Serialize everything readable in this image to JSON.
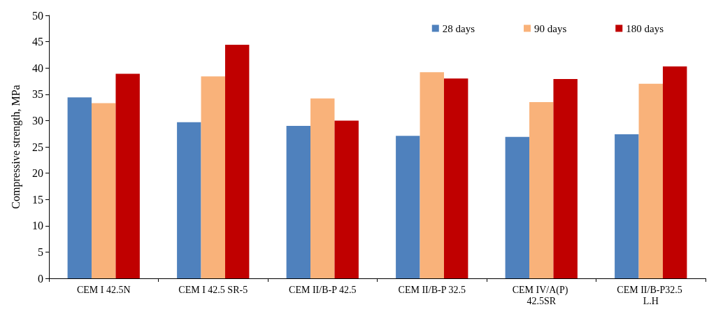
{
  "chart_data": {
    "type": "bar",
    "ylabel": "Compressive strength, MPa",
    "categories": [
      "CEM I 42.5N",
      "CEM I 42.5 SR-5",
      "CEM II/B-P 42.5",
      "CEM II/B-P 32.5",
      "CEM IV/A(P) 42.5SR",
      "CEM II/B-P32.5 L.H"
    ],
    "series": [
      {
        "name": "28 days",
        "color": "#4f81bd",
        "values": [
          34.4,
          29.7,
          29.0,
          27.1,
          26.9,
          27.4
        ]
      },
      {
        "name": "90 days",
        "color": "#f9b27a",
        "values": [
          33.3,
          38.4,
          34.2,
          39.2,
          33.5,
          37.0
        ]
      },
      {
        "name": "180 days",
        "color": "#c00000",
        "values": [
          38.9,
          44.4,
          30.0,
          38.0,
          37.9,
          40.3
        ]
      }
    ],
    "ylim": [
      0,
      50
    ],
    "yticks": [
      0,
      5,
      10,
      15,
      20,
      25,
      30,
      35,
      40,
      45,
      50
    ],
    "grid": false,
    "legend": "top right"
  }
}
